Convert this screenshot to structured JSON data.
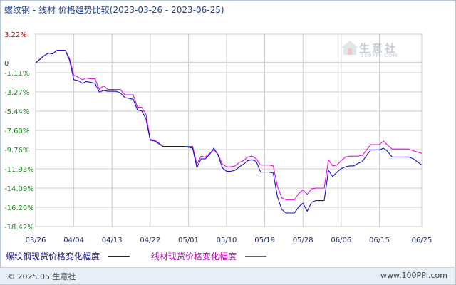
{
  "title": "螺纹钢 - 线材 价格趋势比较(2023-03-26 - 2023-06-25)",
  "watermark": {
    "name": "生意社",
    "url": "100PPI.COM"
  },
  "footer": {
    "copyright": "© 2025.05 生意社",
    "site": "www.100PPI.com"
  },
  "colors": {
    "series1": "#1010c8",
    "series2": "#e010e0",
    "grid": "#cccccc",
    "zero_line": "#888888",
    "tick_positive": "#cc0000",
    "tick_negative": "#228822",
    "tick_zero": "#444444"
  },
  "chart_data": {
    "type": "line",
    "title": "螺纹钢 - 线材 价格趋势比较(2023-03-26 - 2023-06-25)",
    "ylabel": "",
    "xlabel": "",
    "ylim": [
      -18.42,
      3.22
    ],
    "yticks": [
      3.22,
      0,
      -1.11,
      -3.27,
      -5.44,
      -7.6,
      -9.76,
      -11.93,
      -14.09,
      -16.26,
      -18.42
    ],
    "ytick_labels": [
      "3.22%",
      "0",
      "-1.11%",
      "-3.27%",
      "-5.44%",
      "-7.60%",
      "-9.76%",
      "-11.93%",
      "-14.09%",
      "-16.26%",
      "-18.42%"
    ],
    "xtick_labels": [
      "03/26",
      "04/04",
      "04/13",
      "04/22",
      "05/01",
      "05/10",
      "05/19",
      "05/28",
      "06/06",
      "06/15",
      "06/25"
    ],
    "xtick_days": [
      0,
      9,
      18,
      27,
      36,
      45,
      54,
      63,
      72,
      81,
      91
    ],
    "grid": true,
    "legend_position": "bottom-left",
    "series": [
      {
        "name": "螺纹钢现货价格变化幅度",
        "color": "#1010c8",
        "points": [
          [
            0,
            0
          ],
          [
            1,
            0.4
          ],
          [
            2,
            0.8
          ],
          [
            3,
            1.1
          ],
          [
            4,
            1.0
          ],
          [
            5,
            1.4
          ],
          [
            6,
            1.4
          ],
          [
            7,
            1.4
          ],
          [
            8,
            0.3
          ],
          [
            9,
            -1.9
          ],
          [
            10,
            -2.0
          ],
          [
            11,
            -2.3
          ],
          [
            12,
            -2.1
          ],
          [
            13,
            -2.2
          ],
          [
            14,
            -2.3
          ],
          [
            15,
            -3.3
          ],
          [
            16,
            -3.1
          ],
          [
            17,
            -3.2
          ],
          [
            18,
            -3.2
          ],
          [
            19,
            -3.2
          ],
          [
            20,
            -3.4
          ],
          [
            21,
            -3.9
          ],
          [
            22,
            -4.0
          ],
          [
            23,
            -4.1
          ],
          [
            24,
            -5.3
          ],
          [
            25,
            -5.4
          ],
          [
            26,
            -6.3
          ],
          [
            27,
            -8.7
          ],
          [
            28,
            -8.8
          ],
          [
            29,
            -9.1
          ],
          [
            30,
            -9.4
          ],
          [
            31,
            -9.4
          ],
          [
            32,
            -9.4
          ],
          [
            33,
            -9.4
          ],
          [
            34,
            -9.4
          ],
          [
            35,
            -9.4
          ],
          [
            36,
            -9.5
          ],
          [
            37,
            -9.6
          ],
          [
            38,
            -11.8
          ],
          [
            39,
            -10.8
          ],
          [
            40,
            -10.8
          ],
          [
            41,
            -10.3
          ],
          [
            42,
            -9.6
          ],
          [
            43,
            -10.4
          ],
          [
            44,
            -11.8
          ],
          [
            45,
            -12.2
          ],
          [
            46,
            -12.2
          ],
          [
            47,
            -12.1
          ],
          [
            48,
            -11.7
          ],
          [
            49,
            -11.4
          ],
          [
            50,
            -11.0
          ],
          [
            51,
            -10.9
          ],
          [
            52,
            -11.1
          ],
          [
            53,
            -12.3
          ],
          [
            54,
            -12.3
          ],
          [
            55,
            -12.3
          ],
          [
            56,
            -12.4
          ],
          [
            57,
            -15.1
          ],
          [
            58,
            -16.5
          ],
          [
            59,
            -16.9
          ],
          [
            60,
            -16.9
          ],
          [
            61,
            -16.9
          ],
          [
            62,
            -16.2
          ],
          [
            63,
            -15.8
          ],
          [
            64,
            -16.7
          ],
          [
            65,
            -15.7
          ],
          [
            66,
            -15.5
          ],
          [
            67,
            -15.5
          ],
          [
            68,
            -15.5
          ],
          [
            69,
            -12.1
          ],
          [
            70,
            -12.8
          ],
          [
            71,
            -12.3
          ],
          [
            72,
            -11.9
          ],
          [
            73,
            -11.7
          ],
          [
            74,
            -11.6
          ],
          [
            75,
            -11.6
          ],
          [
            76,
            -11.3
          ],
          [
            77,
            -11.1
          ],
          [
            78,
            -10.4
          ],
          [
            79,
            -9.8
          ],
          [
            80,
            -9.8
          ],
          [
            81,
            -9.8
          ],
          [
            82,
            -9.6
          ],
          [
            83,
            -10.0
          ],
          [
            84,
            -10.6
          ],
          [
            85,
            -10.6
          ],
          [
            86,
            -10.6
          ],
          [
            87,
            -10.6
          ],
          [
            88,
            -10.6
          ],
          [
            89,
            -10.8
          ],
          [
            91,
            -11.5
          ]
        ]
      },
      {
        "name": "线材现货价格变化幅度",
        "color": "#e010e0",
        "points": [
          [
            0,
            0
          ],
          [
            1,
            0.4
          ],
          [
            2,
            0.8
          ],
          [
            3,
            1.1
          ],
          [
            4,
            1.0
          ],
          [
            5,
            1.4
          ],
          [
            6,
            1.4
          ],
          [
            7,
            1.4
          ],
          [
            8,
            0.5
          ],
          [
            9,
            -1.4
          ],
          [
            10,
            -1.6
          ],
          [
            11,
            -1.9
          ],
          [
            12,
            -1.7
          ],
          [
            13,
            -1.8
          ],
          [
            14,
            -1.8
          ],
          [
            15,
            -3.0
          ],
          [
            16,
            -2.6
          ],
          [
            17,
            -3.0
          ],
          [
            18,
            -3.0
          ],
          [
            19,
            -3.0
          ],
          [
            20,
            -3.0
          ],
          [
            21,
            -3.6
          ],
          [
            22,
            -3.6
          ],
          [
            23,
            -3.6
          ],
          [
            24,
            -5.0
          ],
          [
            25,
            -5.0
          ],
          [
            26,
            -5.8
          ],
          [
            27,
            -8.6
          ],
          [
            28,
            -8.7
          ],
          [
            29,
            -9.0
          ],
          [
            30,
            -9.4
          ],
          [
            31,
            -9.4
          ],
          [
            32,
            -9.4
          ],
          [
            33,
            -9.4
          ],
          [
            34,
            -9.4
          ],
          [
            35,
            -9.4
          ],
          [
            36,
            -9.4
          ],
          [
            37,
            -9.4
          ],
          [
            38,
            -11.4
          ],
          [
            39,
            -10.5
          ],
          [
            40,
            -10.6
          ],
          [
            41,
            -10.2
          ],
          [
            42,
            -9.8
          ],
          [
            43,
            -10.3
          ],
          [
            44,
            -11.4
          ],
          [
            45,
            -11.7
          ],
          [
            46,
            -11.7
          ],
          [
            47,
            -11.6
          ],
          [
            48,
            -11.2
          ],
          [
            49,
            -11.0
          ],
          [
            50,
            -10.6
          ],
          [
            51,
            -10.5
          ],
          [
            52,
            -10.8
          ],
          [
            53,
            -11.5
          ],
          [
            54,
            -11.5
          ],
          [
            55,
            -11.5
          ],
          [
            56,
            -11.6
          ],
          [
            57,
            -13.9
          ],
          [
            58,
            -15.2
          ],
          [
            59,
            -15.4
          ],
          [
            60,
            -15.4
          ],
          [
            61,
            -15.4
          ],
          [
            62,
            -14.7
          ],
          [
            63,
            -14.3
          ],
          [
            64,
            -14.8
          ],
          [
            65,
            -14.2
          ],
          [
            66,
            -14.1
          ],
          [
            67,
            -14.1
          ],
          [
            68,
            -14.1
          ],
          [
            69,
            -10.9
          ],
          [
            70,
            -11.6
          ],
          [
            71,
            -11.5
          ],
          [
            72,
            -11.0
          ],
          [
            73,
            -10.6
          ],
          [
            74,
            -10.5
          ],
          [
            75,
            -10.5
          ],
          [
            76,
            -10.5
          ],
          [
            77,
            -10.4
          ],
          [
            78,
            -9.8
          ],
          [
            79,
            -9.2
          ],
          [
            80,
            -9.2
          ],
          [
            81,
            -9.2
          ],
          [
            82,
            -8.8
          ],
          [
            83,
            -9.3
          ],
          [
            84,
            -9.7
          ],
          [
            85,
            -9.7
          ],
          [
            86,
            -9.7
          ],
          [
            87,
            -9.7
          ],
          [
            88,
            -9.7
          ],
          [
            89,
            -9.9
          ],
          [
            91,
            -10.2
          ]
        ]
      }
    ]
  }
}
